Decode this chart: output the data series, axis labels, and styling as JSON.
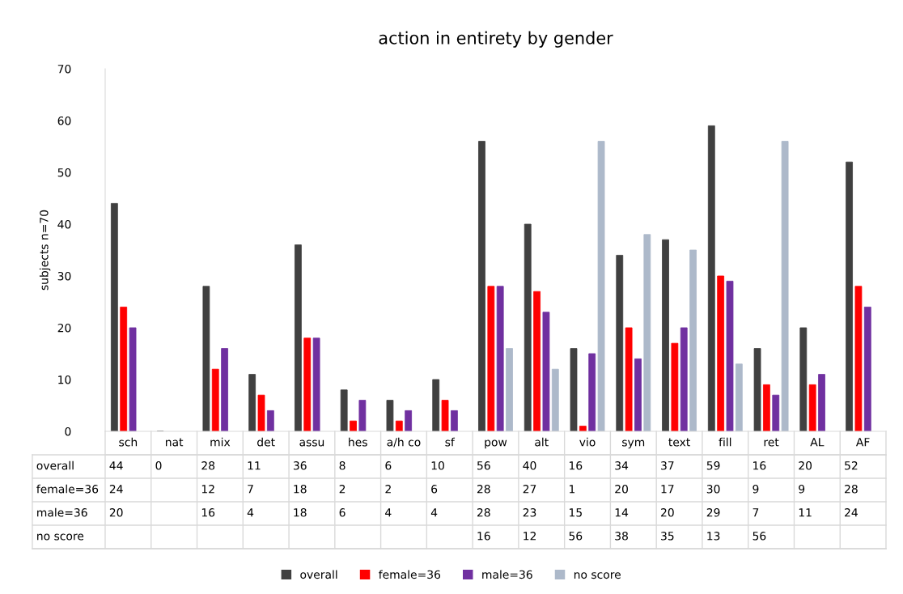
{
  "chart_data": {
    "type": "bar",
    "title": "action in entirety by gender",
    "ylabel": "subjects n=70",
    "categories": [
      "sch",
      "nat",
      "mix",
      "det",
      "assu",
      "hes",
      "a/h co",
      "sf",
      "pow",
      "alt",
      "vio",
      "sym",
      "text",
      "fill",
      "ret",
      "AL",
      "AF"
    ],
    "series": [
      {
        "name": "overall",
        "color": "#404040",
        "values": [
          44,
          0,
          28,
          11,
          36,
          8,
          6,
          10,
          56,
          40,
          16,
          34,
          37,
          59,
          16,
          20,
          52
        ]
      },
      {
        "name": "female=36",
        "color": "#ff0000",
        "values": [
          24,
          null,
          12,
          7,
          18,
          2,
          2,
          6,
          28,
          27,
          1,
          20,
          17,
          30,
          9,
          9,
          28
        ]
      },
      {
        "name": "male=36",
        "color": "#7030a0",
        "values": [
          20,
          null,
          16,
          4,
          18,
          6,
          4,
          4,
          28,
          23,
          15,
          14,
          20,
          29,
          7,
          11,
          24
        ]
      },
      {
        "name": "no score",
        "color": "#adb9ca",
        "values": [
          null,
          null,
          null,
          null,
          null,
          null,
          null,
          null,
          16,
          12,
          56,
          38,
          35,
          13,
          56,
          null,
          null
        ]
      }
    ],
    "ylim": [
      0,
      70
    ],
    "yticks": [
      0,
      10,
      20,
      30,
      40,
      50,
      60,
      70
    ],
    "grid": false,
    "legend": "bottom",
    "data_labels": true
  }
}
